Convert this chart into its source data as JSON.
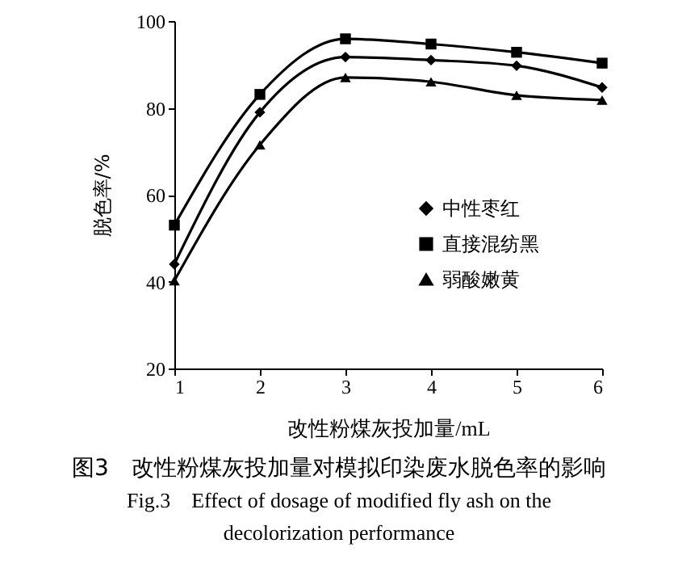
{
  "chart_data": {
    "type": "line",
    "xlabel": "改性粉煤灰投加量/mL",
    "ylabel": "脱色率/%",
    "x": [
      1,
      2,
      3,
      4,
      5,
      6
    ],
    "xlim": [
      1,
      6
    ],
    "xticks": [
      1,
      2,
      3,
      4,
      5,
      6
    ],
    "ylim": [
      20,
      100
    ],
    "yticks": [
      20,
      40,
      60,
      80,
      100
    ],
    "series": [
      {
        "name": "中性枣红",
        "color": "#000000",
        "marker": "diamond",
        "values": [
          44,
          79,
          91.7,
          91,
          89.7,
          84.7
        ]
      },
      {
        "name": "直接混纺黑",
        "color": "#000000",
        "marker": "square",
        "values": [
          53,
          83.1,
          95.9,
          94.7,
          92.8,
          90.3
        ]
      },
      {
        "name": "弱酸嫩黄",
        "color": "#000000",
        "marker": "triangle",
        "values": [
          40.2,
          71.5,
          87,
          86,
          82.9,
          81.8
        ]
      }
    ],
    "legend": "right",
    "grid": false,
    "annotations": [
      "图3　改性粉煤灰投加量对模拟印染废水脱色率的影响",
      "Fig.3　Effect of dosage of modified fly ash on the",
      "decolorization performance"
    ]
  }
}
